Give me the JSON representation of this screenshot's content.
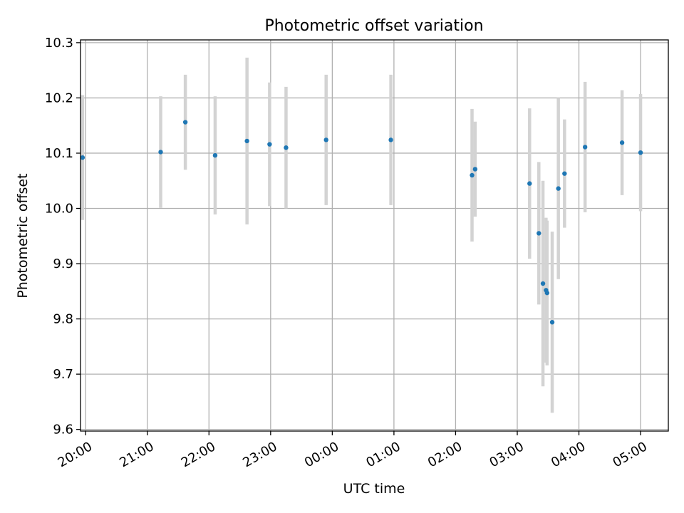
{
  "chart_data": {
    "type": "scatter",
    "title": "Photometric offset variation",
    "xlabel": "UTC time",
    "ylabel": "Photometric offset",
    "x_tick_labels": [
      "20:00",
      "21:00",
      "22:00",
      "23:00",
      "00:00",
      "01:00",
      "02:00",
      "03:00",
      "04:00",
      "05:00"
    ],
    "y_tick_labels": [
      "9.6",
      "9.7",
      "9.8",
      "9.9",
      "10.0",
      "10.1",
      "10.2",
      "10.3"
    ],
    "ylim": [
      9.597,
      10.305
    ],
    "xlim": [
      "19:55",
      "05:27"
    ],
    "grid": true,
    "colors": {
      "point": "#1f77b4",
      "errorbar": "#d3d3d3",
      "grid": "#b0b0b0"
    },
    "series": [
      {
        "x": [
          "19:57",
          "21:13",
          "21:37",
          "22:06",
          "22:37",
          "22:59",
          "23:15",
          "23:54",
          "00:57",
          "02:16",
          "02:19",
          "03:12",
          "03:21",
          "03:25",
          "03:28",
          "03:29",
          "03:34",
          "03:40",
          "03:46",
          "04:06",
          "04:42",
          "05:00"
        ],
        "y": [
          10.092,
          10.102,
          10.156,
          10.096,
          10.122,
          10.116,
          10.11,
          10.124,
          10.124,
          10.06,
          10.071,
          10.045,
          9.955,
          9.864,
          9.852,
          9.847,
          9.794,
          10.036,
          10.063,
          10.111,
          10.119,
          10.101
        ],
        "yerr": [
          0.113,
          0.101,
          0.086,
          0.107,
          0.151,
          0.112,
          0.11,
          0.118,
          0.118,
          0.12,
          0.086,
          0.136,
          0.129,
          0.186,
          0.131,
          0.131,
          0.164,
          0.164,
          0.098,
          0.118,
          0.095,
          0.106
        ]
      }
    ]
  }
}
